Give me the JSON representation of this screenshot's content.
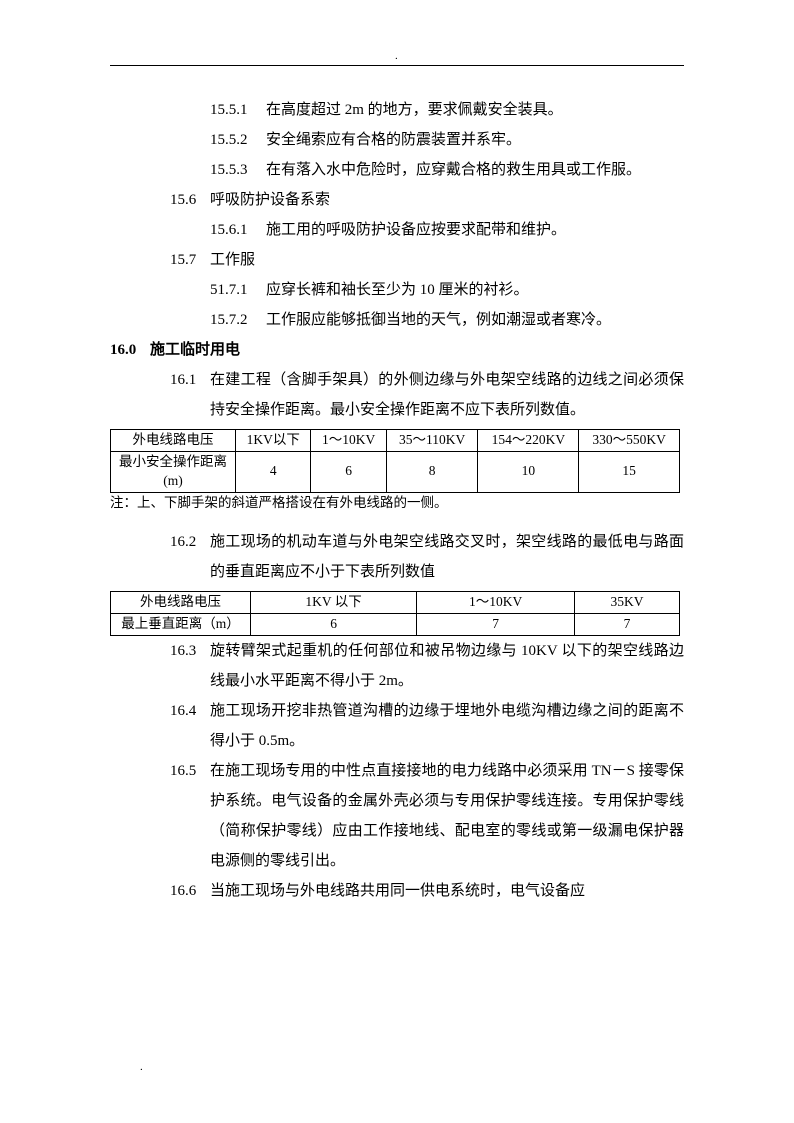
{
  "items": [
    {
      "cls": "l3",
      "num": "15.5.1",
      "txt": "在高度超过 2m 的地方，要求佩戴安全装具。"
    },
    {
      "cls": "l3",
      "num": "15.5.2",
      "txt": "安全绳索应有合格的防震装置并系牢。"
    },
    {
      "cls": "l3",
      "num": "15.5.3",
      "txt": "在有落入水中危险时，应穿戴合格的救生用具或工作服。"
    },
    {
      "cls": "l2",
      "num": "15.6",
      "txt": "呼吸防护设备系索"
    },
    {
      "cls": "l3",
      "num": "15.6.1",
      "txt": "施工用的呼吸防护设备应按要求配带和维护。"
    },
    {
      "cls": "l2",
      "num": "15.7",
      "txt": "工作服"
    },
    {
      "cls": "l3",
      "num": "51.7.1",
      "txt": "应穿长裤和袖长至少为 10 厘米的衬衫。"
    },
    {
      "cls": "l3",
      "num": "15.7.2",
      "txt": "工作服应能够抵御当地的天气，例如潮湿或者寒冷。"
    },
    {
      "cls": "l1",
      "num": "16.0",
      "txt": "施工临时用电"
    },
    {
      "cls": "l1b",
      "num": "16.1",
      "txt": "在建工程（含脚手架具）的外侧边缘与外电架空线路的边线之间必须保持安全操作距离。最小安全操作距离不应下表所列数值。"
    }
  ],
  "table1": {
    "headers": [
      "外电线路电压",
      "1KV以下",
      "1～10KV",
      "35～110KV",
      "154～220KV",
      "330～550KV"
    ],
    "row_label": "最小安全操作距离(m)",
    "values": [
      "4",
      "6",
      "8",
      "10",
      "15"
    ],
    "note": "注：上、下脚手架的斜道严格搭设在有外电线路的一侧。"
  },
  "items2": [
    {
      "cls": "l1b",
      "num": "16.2",
      "txt": "施工现场的机动车道与外电架空线路交叉时，架空线路的最低电与路面的垂直距离应不小于下表所列数值"
    }
  ],
  "table2": {
    "headers": [
      "外电线路电压",
      "1KV 以下",
      "1～10KV",
      "35KV"
    ],
    "row_label": "最上垂直距离（m）",
    "values": [
      "6",
      "7",
      "7"
    ]
  },
  "items3": [
    {
      "cls": "l1b",
      "num": "16.3",
      "txt": "旋转臂架式起重机的任何部位和被吊物边缘与 10KV 以下的架空线路边线最小水平距离不得小于 2m。"
    },
    {
      "cls": "l1b",
      "num": "16.4",
      "txt": "施工现场开挖非热管道沟槽的边缘于埋地外电缆沟槽边缘之间的距离不得小于 0.5m。"
    },
    {
      "cls": "l1b",
      "num": "16.5",
      "txt": "在施工现场专用的中性点直接接地的电力线路中必须采用 TN－S 接零保护系统。电气设备的金属外壳必须与专用保护零线连接。专用保护零线（简称保护零线）应由工作接地线、配电室的零线或第一级漏电保护器电源侧的零线引出。"
    },
    {
      "cls": "l1b",
      "num": "16.6",
      "txt": "当施工现场与外电线路共用同一供电系统时，电气设备应"
    }
  ]
}
